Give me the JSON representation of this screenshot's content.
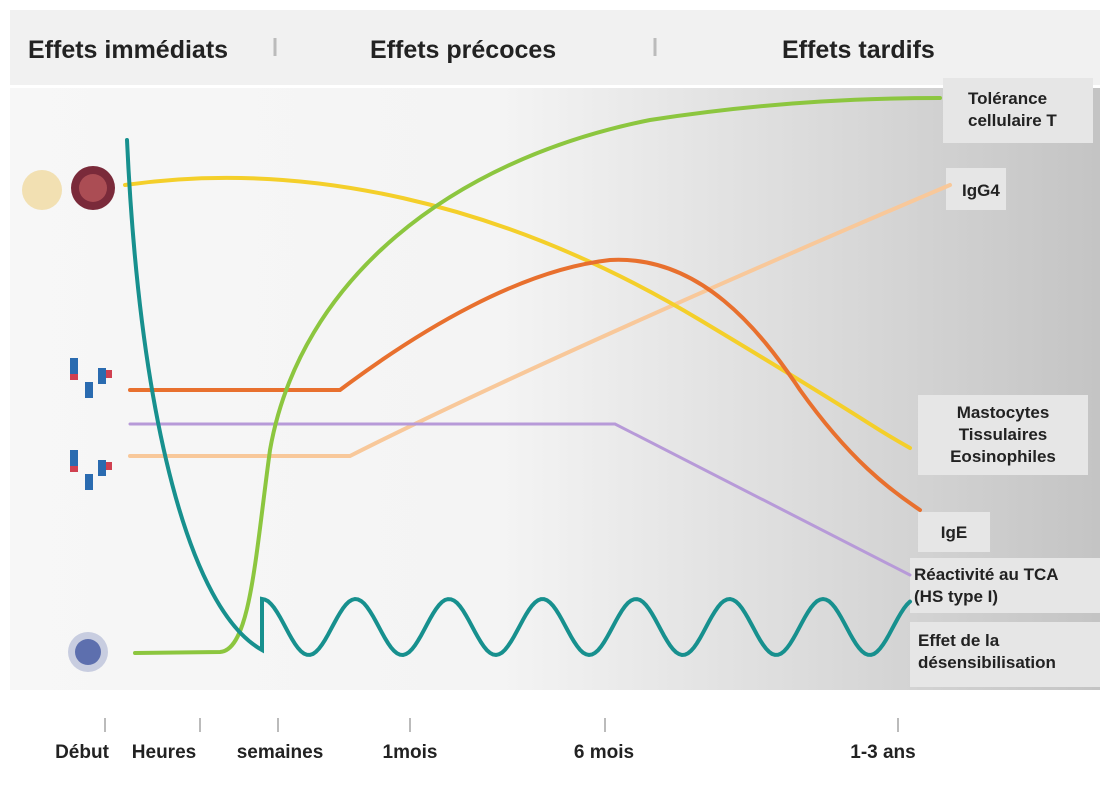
{
  "header": {
    "phases": [
      "Effets immédiats",
      "Effets précoces",
      "Effets tardifs"
    ]
  },
  "curve_labels": [
    {
      "lines": [
        "Tolérance",
        "cellulaire T"
      ]
    },
    {
      "lines": [
        "IgG4"
      ]
    },
    {
      "lines": [
        "Mastocytes",
        "Tissulaires",
        "Eosinophiles"
      ]
    },
    {
      "lines": [
        "IgE"
      ]
    },
    {
      "lines": [
        "Réactivité au TCA",
        "(HS type I)"
      ]
    },
    {
      "lines": [
        "Effet de la",
        "désensibilisation"
      ]
    }
  ],
  "timeline": [
    "Début",
    "Heures",
    "semaines",
    "1mois",
    "6 mois",
    "1-3 ans"
  ]
}
